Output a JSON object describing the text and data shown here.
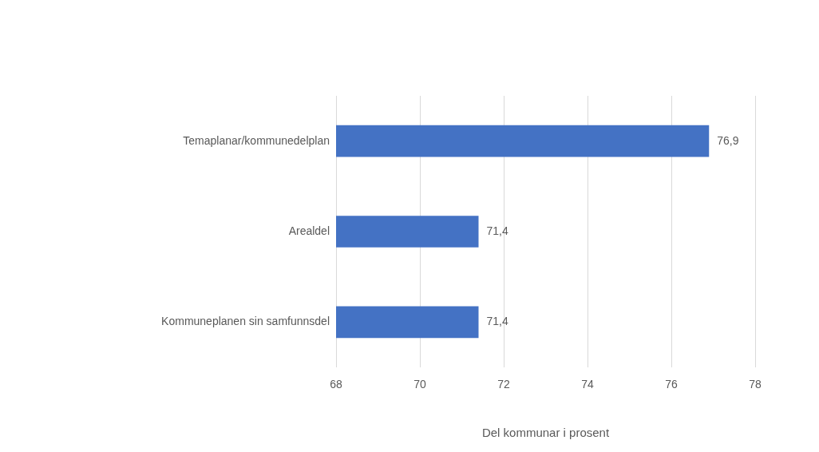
{
  "chart_data": {
    "type": "bar",
    "orientation": "horizontal",
    "xlabel": "Del kommunar i prosent",
    "categories": [
      "Temaplanar/kommunedelplan",
      "Arealdel",
      "Kommuneplanen sin samfunnsdel"
    ],
    "values": [
      76.9,
      71.4,
      71.4
    ],
    "value_labels": [
      "76,9",
      "71,4",
      "71,4"
    ],
    "color": "#4472c4",
    "xlim": [
      68,
      78
    ],
    "xticks": [
      68,
      70,
      72,
      74,
      76,
      78
    ],
    "grid": "x",
    "legend": false
  }
}
